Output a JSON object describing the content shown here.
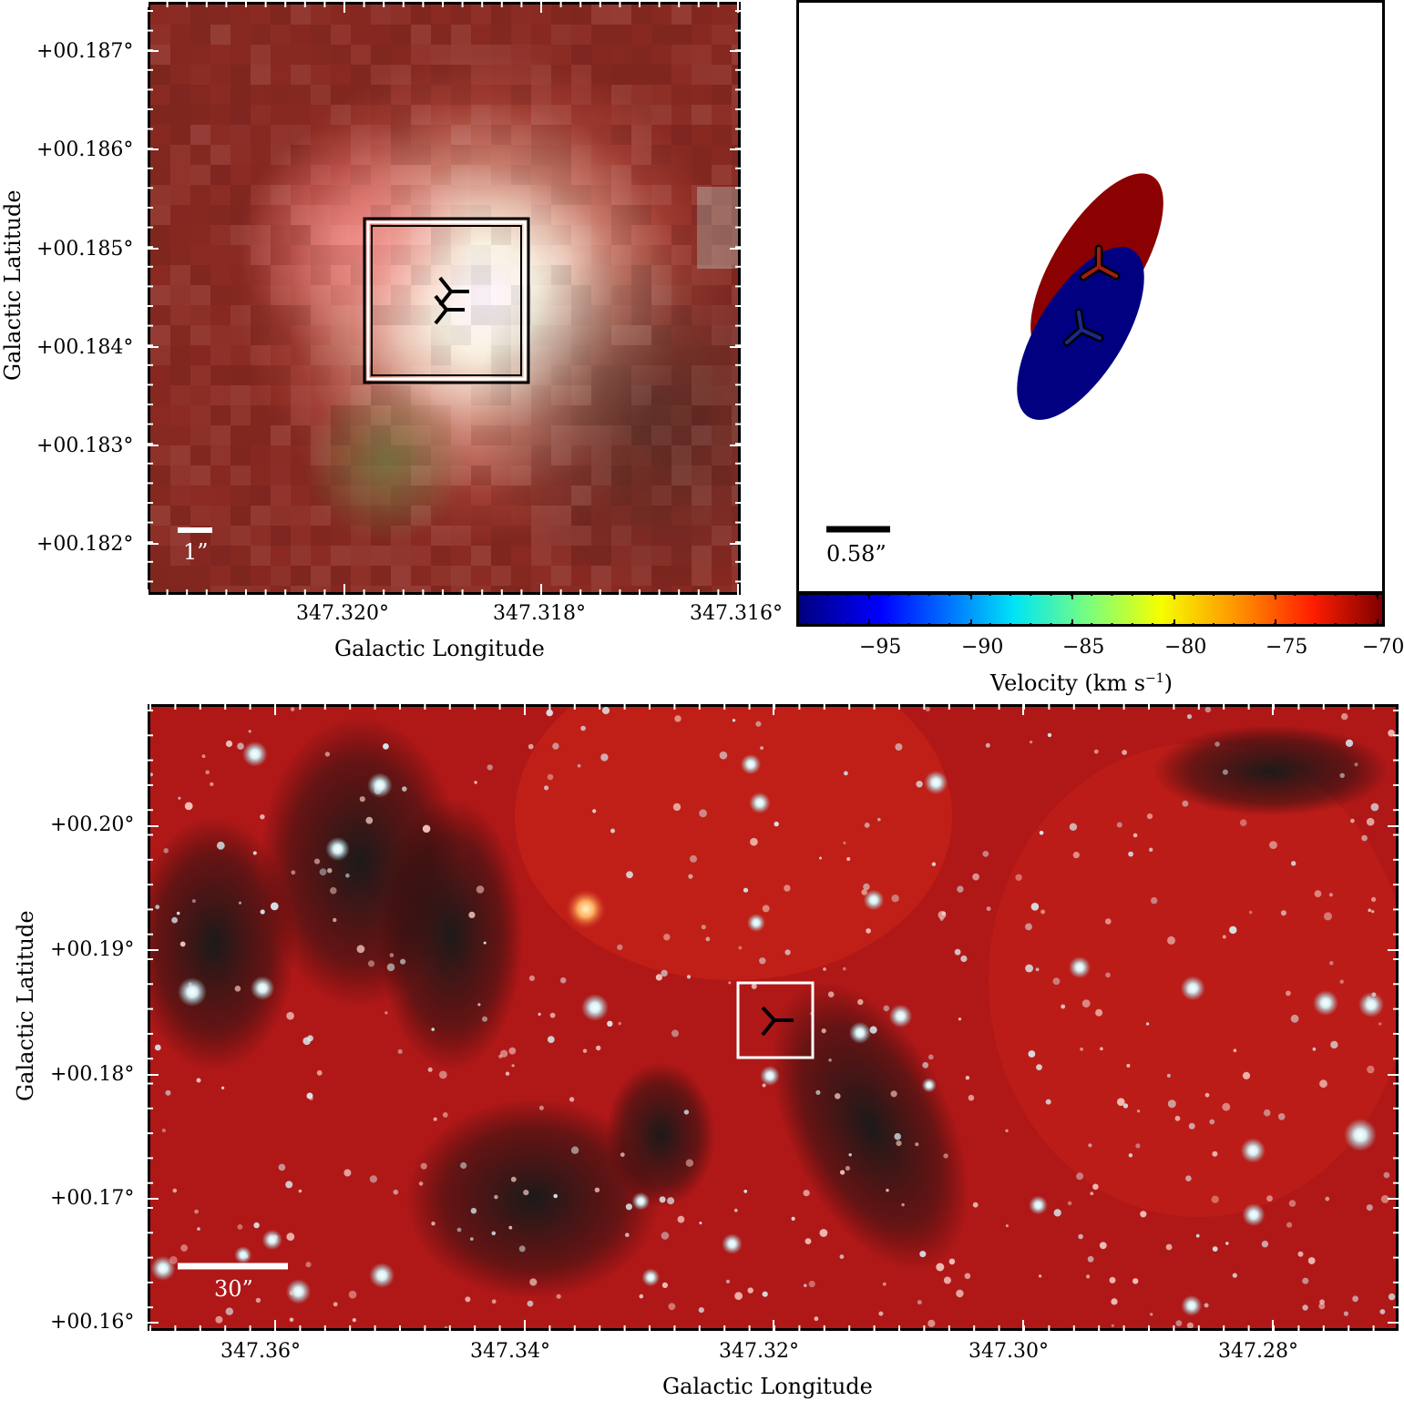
{
  "top_left": {
    "y_ticks": [
      "+00.187°",
      "+00.186°",
      "+00.185°",
      "+00.184°",
      "+00.183°",
      "+00.182°"
    ],
    "x_ticks": [
      "347.320°",
      "347.318°",
      "347.316°"
    ],
    "xlabel": "Galactic Longitude",
    "ylabel": "Galactic Latitude",
    "scalebar_label": "1”"
  },
  "top_right": {
    "scalebar_label": "0.58”",
    "colorbar_ticks": [
      "−95",
      "−90",
      "−85",
      "−80",
      "−75",
      "−70"
    ],
    "colorbar_label": "Velocity (km s",
    "colorbar_label_sup": "−1",
    "colorbar_label_end": ")",
    "red_lobe_color": "#8b0000",
    "blue_lobe_color": "#000080",
    "colorbar_range": [
      -98.5,
      -70
    ]
  },
  "bottom": {
    "y_ticks": [
      "+00.20°",
      "+00.19°",
      "+00.18°",
      "+00.17°",
      "+00.16°"
    ],
    "x_ticks": [
      "347.36°",
      "347.34°",
      "347.32°",
      "347.30°",
      "347.28°"
    ],
    "xlabel": "Galactic Longitude",
    "ylabel": "Galactic Latitude",
    "scalebar_label": "30”"
  }
}
